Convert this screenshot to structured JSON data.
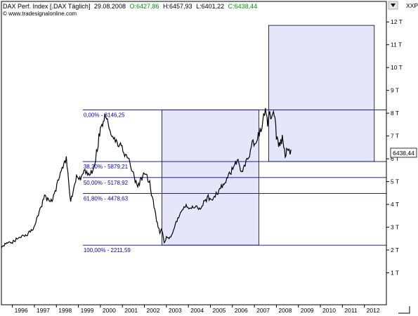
{
  "header": {
    "instrument": "DAX Perf. Index [.DAX Täglich]",
    "date": "29.08.2008",
    "open": "O:6427,86",
    "high": "H:6457,93",
    "low": "L:6401,22",
    "close": "C:6438,44",
    "watermark": "© www.tradesignalonline.com",
    "scale_label": "XXP",
    "last_price": "6438,44"
  },
  "colors": {
    "frame": "#000000",
    "price": "#000000",
    "fib_line": "#0000aa",
    "fib_text": "#0000cc",
    "box_fill": "#e6e6fb",
    "box_stroke": "#000000",
    "open_color": "#009900",
    "close_color": "#009900"
  },
  "chart_data": {
    "type": "line",
    "x_tick_labels": [
      "1996",
      "1997",
      "1998",
      "1999",
      "2000",
      "2001",
      "2002",
      "2003",
      "2004",
      "2005",
      "2006",
      "2007",
      "2008",
      "2009",
      "2010",
      "2011",
      "2012"
    ],
    "y_tick_labels": [
      "1 T",
      "2 T",
      "3 T",
      "4 T",
      "5 T",
      "6 T",
      "7 T",
      "8 T",
      "9 T",
      "10 T",
      "11 T",
      "12 T"
    ],
    "y_tick_values": [
      1000,
      2000,
      3000,
      4000,
      5000,
      6000,
      7000,
      8000,
      9000,
      10000,
      11000,
      12000
    ],
    "xlim": [
      1995.5,
      2013.0
    ],
    "ylim": [
      -400,
      12900
    ],
    "grid": false,
    "series": [
      {
        "x": [
          1995.5,
          1995.7,
          1996.0,
          1996.3,
          1996.6,
          1996.9,
          1997.1,
          1997.3,
          1997.5,
          1997.6,
          1997.8,
          1997.9,
          1998.1,
          1998.3,
          1998.45,
          1998.55,
          1998.65,
          1998.8,
          1998.95,
          1999.1,
          1999.3,
          1999.5,
          1999.7,
          1999.9,
          2000.0,
          2000.1,
          2000.2,
          2000.4,
          2000.6,
          2000.8,
          2000.95,
          2001.1,
          2001.3,
          2001.5,
          2001.7,
          2001.85,
          2002.0,
          2002.2,
          2002.4,
          2002.55,
          2002.7,
          2002.8,
          2002.9,
          2003.0,
          2003.2,
          2003.4,
          2003.6,
          2003.8,
          2003.9,
          2004.1,
          2004.3,
          2004.5,
          2004.7,
          2004.9,
          2005.1,
          2005.3,
          2005.5,
          2005.7,
          2005.9,
          2006.1,
          2006.3,
          2006.4,
          2006.5,
          2006.7,
          2006.9,
          2007.1,
          2007.3,
          2007.5,
          2007.6,
          2007.7,
          2007.8,
          2007.9,
          2008.0,
          2008.1,
          2008.2,
          2008.3,
          2008.4,
          2008.5,
          2008.6,
          2008.66
        ],
        "y": [
          2150,
          2250,
          2350,
          2550,
          2650,
          2850,
          3300,
          3900,
          4400,
          4200,
          4100,
          4400,
          5100,
          5700,
          6000,
          5000,
          4100,
          4700,
          5300,
          5100,
          5500,
          5300,
          5500,
          6700,
          7400,
          7600,
          8000,
          7300,
          6900,
          6500,
          6600,
          6200,
          5900,
          5300,
          4700,
          5100,
          5300,
          5100,
          4100,
          3300,
          2800,
          2900,
          2300,
          2600,
          2500,
          3100,
          3500,
          3900,
          3900,
          3800,
          3950,
          3800,
          4100,
          4300,
          4300,
          4500,
          4800,
          5000,
          5400,
          5700,
          5900,
          5400,
          5600,
          6000,
          6600,
          6900,
          7300,
          8100,
          7500,
          7900,
          7800,
          8100,
          7000,
          6600,
          6800,
          6900,
          6100,
          6400,
          6200,
          6400
        ]
      }
    ],
    "fib_levels": [
      {
        "label": "0,00% - 8146,25",
        "value": 8146.25
      },
      {
        "label": "38,20% - 5879,21",
        "value": 5879.21
      },
      {
        "label": "50,00% - 5178,92",
        "value": 5178.92
      },
      {
        "label": "61,80% - 4478,63",
        "value": 4478.63
      },
      {
        "label": "100,00% - 2211,59",
        "value": 2211.59
      }
    ],
    "boxes": [
      {
        "x0": 2002.8,
        "x1": 2007.2,
        "y0": 2211.59,
        "y1": 8146.25
      },
      {
        "x0": 2007.65,
        "x1": 2012.45,
        "y0": 5879.21,
        "y1": 11850
      }
    ],
    "fib_line_x_start": 1999.2
  }
}
